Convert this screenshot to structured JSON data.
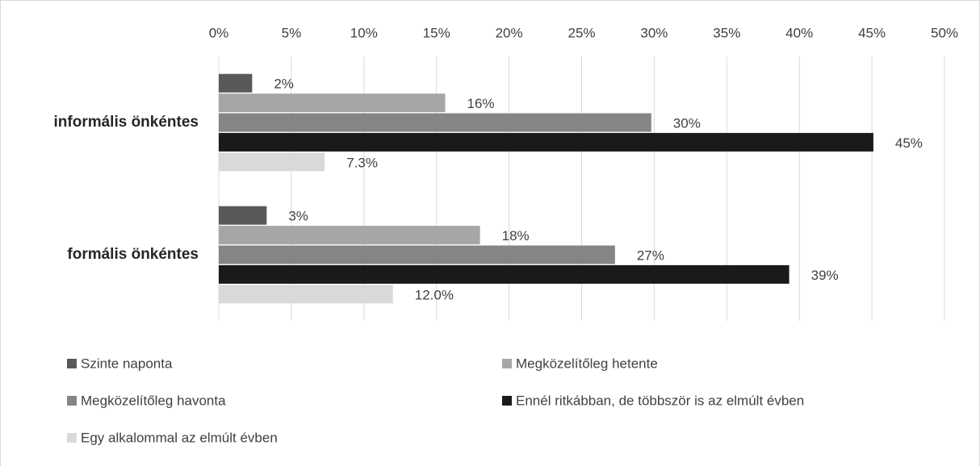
{
  "chart_data": {
    "type": "bar",
    "orientation": "horizontal",
    "categories": [
      "informális önkéntes",
      "formális önkéntes"
    ],
    "series": [
      {
        "name": "Szinte naponta",
        "color": "#595959",
        "values": [
          2.3,
          3.3
        ],
        "value_labels": [
          "2%",
          "3%"
        ]
      },
      {
        "name": "Megközelítőleg hetente",
        "color": "#a6a6a6",
        "values": [
          15.6,
          18.0
        ],
        "value_labels": [
          "16%",
          "18%"
        ]
      },
      {
        "name": "Megközelítőleg havonta",
        "color": "#858585",
        "values": [
          29.8,
          27.3
        ],
        "value_labels": [
          "30%",
          "27%"
        ]
      },
      {
        "name": "Ennél ritkábban, de többször is az elmúlt évben",
        "color": "#1a1a1a",
        "values": [
          45.1,
          39.3
        ],
        "value_labels": [
          "45%",
          "39%"
        ]
      },
      {
        "name": "Egy alkalommal az elmúlt évben",
        "color": "#d9d9d9",
        "values": [
          7.3,
          12.0
        ],
        "value_labels": [
          "7.3%",
          "12.0%"
        ]
      }
    ],
    "xlim": [
      0,
      50
    ],
    "xticks": [
      {
        "value": 0,
        "label": "0%"
      },
      {
        "value": 5,
        "label": "5%"
      },
      {
        "value": 10,
        "label": "10%"
      },
      {
        "value": 15,
        "label": "15%"
      },
      {
        "value": 20,
        "label": "20%"
      },
      {
        "value": 25,
        "label": "25%"
      },
      {
        "value": 30,
        "label": "30%"
      },
      {
        "value": 35,
        "label": "35%"
      },
      {
        "value": 40,
        "label": "40%"
      },
      {
        "value": 45,
        "label": "45%"
      },
      {
        "value": 50,
        "label": "50%"
      }
    ],
    "grid": true,
    "legend": "bottom"
  }
}
